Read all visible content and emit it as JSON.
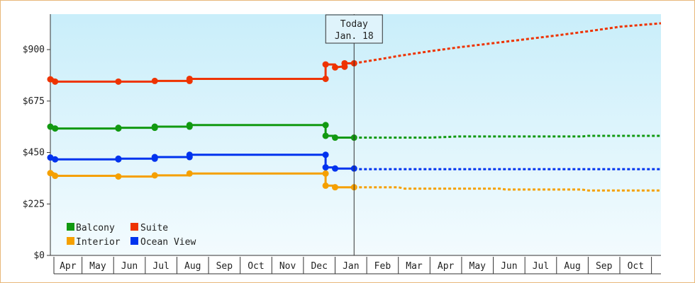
{
  "chart_data": {
    "type": "line",
    "y_axis": {
      "ticks": [
        "$0",
        "$225",
        "$450",
        "$675",
        "$900"
      ],
      "tick_values": [
        0,
        225,
        450,
        675,
        900
      ],
      "ylim": [
        0,
        1055
      ]
    },
    "x_axis": {
      "months": [
        "Apr",
        "May",
        "Jun",
        "Jul",
        "Aug",
        "Sep",
        "Oct",
        "Nov",
        "Dec",
        "Jan",
        "Feb",
        "Mar",
        "Apr",
        "May",
        "Jun",
        "Jul",
        "Aug",
        "Sep",
        "Oct"
      ],
      "xlim": [
        0.0,
        19.3
      ]
    },
    "today": {
      "line1": "Today",
      "line2": "Jan. 18",
      "x": 9.6
    },
    "legend": {
      "placement": "bottom-left",
      "entries": [
        {
          "name": "Balcony",
          "color": "#119911"
        },
        {
          "name": "Suite",
          "color": "#ee3300"
        },
        {
          "name": "Interior",
          "color": "#f5a000"
        },
        {
          "name": "Ocean View",
          "color": "#0033ee"
        }
      ]
    },
    "series": [
      {
        "name": "Suite",
        "color": "#ee3300",
        "actual": [
          [
            0.0,
            770
          ],
          [
            0.1,
            770
          ],
          [
            0.15,
            760
          ],
          [
            2.15,
            760
          ],
          [
            3.3,
            760
          ],
          [
            3.3,
            763
          ],
          [
            4.4,
            763
          ],
          [
            4.4,
            772
          ],
          [
            8.7,
            772
          ],
          [
            8.7,
            835
          ],
          [
            9.0,
            835
          ],
          [
            9.0,
            822
          ],
          [
            9.2,
            825
          ],
          [
            9.3,
            825
          ],
          [
            9.3,
            840
          ],
          [
            9.6,
            840
          ]
        ],
        "markers": [
          [
            0.0,
            770
          ],
          [
            0.15,
            760
          ],
          [
            2.15,
            760
          ],
          [
            3.3,
            763
          ],
          [
            4.4,
            763
          ],
          [
            4.4,
            772
          ],
          [
            8.7,
            772
          ],
          [
            8.7,
            835
          ],
          [
            9.0,
            822
          ],
          [
            9.3,
            825
          ],
          [
            9.3,
            840
          ],
          [
            9.6,
            840
          ]
        ],
        "forecast": [
          [
            9.6,
            840
          ],
          [
            10.5,
            860
          ],
          [
            11.0,
            872
          ],
          [
            12.0,
            893
          ],
          [
            12.9,
            910
          ],
          [
            14.0,
            928
          ],
          [
            15.0,
            945
          ],
          [
            16.0,
            962
          ],
          [
            17.0,
            980
          ],
          [
            18.0,
            1000
          ],
          [
            19.3,
            1015
          ]
        ]
      },
      {
        "name": "Balcony",
        "color": "#119911",
        "actual": [
          [
            0.0,
            563
          ],
          [
            0.15,
            555
          ],
          [
            2.15,
            555
          ],
          [
            2.15,
            558
          ],
          [
            3.3,
            558
          ],
          [
            3.3,
            563
          ],
          [
            4.4,
            563
          ],
          [
            4.4,
            570
          ],
          [
            8.7,
            570
          ],
          [
            8.7,
            523
          ],
          [
            9.0,
            523
          ],
          [
            9.0,
            515
          ],
          [
            9.6,
            515
          ]
        ],
        "markers": [
          [
            0.0,
            563
          ],
          [
            0.15,
            555
          ],
          [
            2.15,
            555
          ],
          [
            2.15,
            558
          ],
          [
            3.3,
            558
          ],
          [
            3.3,
            563
          ],
          [
            4.4,
            563
          ],
          [
            4.4,
            570
          ],
          [
            8.7,
            570
          ],
          [
            8.7,
            523
          ],
          [
            9.0,
            515
          ],
          [
            9.6,
            515
          ]
        ],
        "forecast": [
          [
            9.6,
            515
          ],
          [
            12.0,
            515
          ],
          [
            12.9,
            520
          ],
          [
            16.8,
            520
          ],
          [
            17.0,
            523
          ],
          [
            19.3,
            523
          ]
        ]
      },
      {
        "name": "Ocean View",
        "color": "#0033ee",
        "actual": [
          [
            0.0,
            428
          ],
          [
            0.15,
            420
          ],
          [
            2.15,
            420
          ],
          [
            2.15,
            423
          ],
          [
            3.3,
            423
          ],
          [
            3.3,
            430
          ],
          [
            4.4,
            430
          ],
          [
            4.4,
            440
          ],
          [
            8.7,
            440
          ],
          [
            8.7,
            385
          ],
          [
            9.0,
            385
          ],
          [
            9.0,
            380
          ],
          [
            9.6,
            380
          ]
        ],
        "markers": [
          [
            0.0,
            428
          ],
          [
            0.15,
            420
          ],
          [
            2.15,
            420
          ],
          [
            2.15,
            423
          ],
          [
            3.3,
            423
          ],
          [
            3.3,
            430
          ],
          [
            4.4,
            430
          ],
          [
            4.4,
            440
          ],
          [
            8.7,
            440
          ],
          [
            8.7,
            385
          ],
          [
            9.0,
            380
          ],
          [
            9.6,
            380
          ]
        ],
        "forecast": [
          [
            9.6,
            377
          ],
          [
            19.3,
            377
          ]
        ]
      },
      {
        "name": "Interior",
        "color": "#f5a000",
        "actual": [
          [
            0.0,
            360
          ],
          [
            0.1,
            360
          ],
          [
            0.15,
            348
          ],
          [
            2.15,
            348
          ],
          [
            2.15,
            345
          ],
          [
            3.3,
            345
          ],
          [
            3.3,
            350
          ],
          [
            4.4,
            350
          ],
          [
            4.4,
            358
          ],
          [
            8.7,
            358
          ],
          [
            8.7,
            305
          ],
          [
            9.0,
            305
          ],
          [
            9.0,
            298
          ],
          [
            9.6,
            298
          ]
        ],
        "markers": [
          [
            0.0,
            360
          ],
          [
            0.15,
            348
          ],
          [
            2.15,
            345
          ],
          [
            3.3,
            350
          ],
          [
            4.4,
            358
          ],
          [
            8.7,
            358
          ],
          [
            8.7,
            305
          ],
          [
            9.0,
            298
          ],
          [
            9.6,
            298
          ]
        ],
        "forecast": [
          [
            9.6,
            298
          ],
          [
            11.0,
            298
          ],
          [
            11.2,
            292
          ],
          [
            14.2,
            292
          ],
          [
            14.4,
            288
          ],
          [
            16.8,
            288
          ],
          [
            17.0,
            284
          ],
          [
            19.3,
            284
          ]
        ]
      }
    ]
  }
}
